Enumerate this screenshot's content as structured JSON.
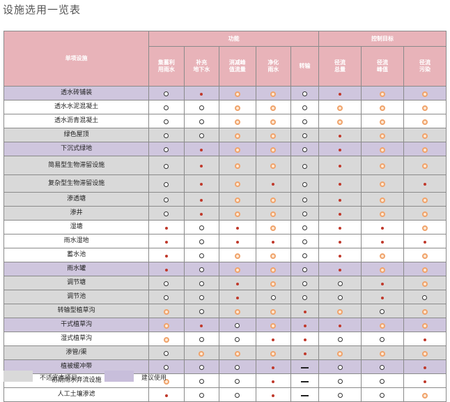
{
  "title": "设施选用一览表",
  "header": {
    "item_col": "单项设施",
    "groups": [
      "功能",
      "控制目标"
    ],
    "columns": [
      [
        "集蓄利",
        "用雨水"
      ],
      [
        "补充",
        "地下水"
      ],
      [
        "消减峰",
        "值流量"
      ],
      [
        "净化",
        "雨水"
      ],
      [
        "转输"
      ],
      [
        "径流",
        "总量"
      ],
      [
        "径流",
        "峰值"
      ],
      [
        "径流",
        "污染"
      ]
    ]
  },
  "legend_symbols": {
    "o": "empty circle",
    "dot": "small red dot",
    "r": "orange ring",
    "dash": "dash"
  },
  "rows": [
    {
      "name": "透水砖铺装",
      "bg": "purple",
      "cells": [
        "o",
        "dot",
        "r",
        "r",
        "o",
        "dot",
        "r",
        "r"
      ]
    },
    {
      "name": "透水水泥混凝土",
      "bg": "white",
      "cells": [
        "o",
        "o",
        "r",
        "r",
        "o",
        "r",
        "r",
        "r"
      ]
    },
    {
      "name": "透水沥青混凝土",
      "bg": "white",
      "cells": [
        "o",
        "o",
        "r",
        "r",
        "o",
        "r",
        "r",
        "r"
      ]
    },
    {
      "name": "绿色屋顶",
      "bg": "gray",
      "cells": [
        "o",
        "o",
        "r",
        "r",
        "o",
        "dot",
        "r",
        "r"
      ]
    },
    {
      "name": "下沉式绿地",
      "bg": "purple",
      "cells": [
        "o",
        "dot",
        "r",
        "r",
        "o",
        "dot",
        "r",
        "r"
      ]
    },
    {
      "name": "简易型生物滞留设施",
      "bg": "gray",
      "cells": [
        "o",
        "dot",
        "r",
        "r",
        "o",
        "dot",
        "r",
        "r"
      ]
    },
    {
      "name": "复杂型生物滞留设施",
      "bg": "gray",
      "cells": [
        "o",
        "dot",
        "r",
        "dot",
        "o",
        "dot",
        "r",
        "dot"
      ]
    },
    {
      "name": "渗透塘",
      "bg": "gray",
      "cells": [
        "o",
        "dot",
        "r",
        "r",
        "o",
        "dot",
        "r",
        "r"
      ]
    },
    {
      "name": "渗井",
      "bg": "gray",
      "cells": [
        "o",
        "dot",
        "r",
        "r",
        "o",
        "dot",
        "r",
        "r"
      ]
    },
    {
      "name": "湿塘",
      "bg": "white",
      "cells": [
        "dot",
        "o",
        "dot",
        "r",
        "o",
        "dot",
        "dot",
        "r"
      ]
    },
    {
      "name": "雨水湿地",
      "bg": "white",
      "cells": [
        "dot",
        "o",
        "dot",
        "dot",
        "o",
        "dot",
        "dot",
        "dot"
      ]
    },
    {
      "name": "蓄水池",
      "bg": "white",
      "cells": [
        "dot",
        "o",
        "r",
        "r",
        "o",
        "dot",
        "r",
        "r"
      ]
    },
    {
      "name": "雨水罐",
      "bg": "purple",
      "cells": [
        "dot",
        "o",
        "r",
        "r",
        "o",
        "dot",
        "r",
        "r"
      ]
    },
    {
      "name": "调节塘",
      "bg": "gray",
      "cells": [
        "o",
        "o",
        "dot",
        "r",
        "o",
        "o",
        "dot",
        "r"
      ]
    },
    {
      "name": "调节池",
      "bg": "gray",
      "cells": [
        "o",
        "o",
        "dot",
        "o",
        "o",
        "o",
        "dot",
        "o"
      ]
    },
    {
      "name": "转输型植草沟",
      "bg": "gray",
      "cells": [
        "r",
        "o",
        "r",
        "r",
        "dot",
        "r",
        "o",
        "r"
      ]
    },
    {
      "name": "干式植草沟",
      "bg": "purple",
      "cells": [
        "r",
        "dot",
        "o",
        "r",
        "dot",
        "dot",
        "r",
        "r"
      ]
    },
    {
      "name": "湿式植草沟",
      "bg": "white",
      "cells": [
        "r",
        "o",
        "o",
        "dot",
        "dot",
        "o",
        "o",
        "dot"
      ]
    },
    {
      "name": "渗管/渠",
      "bg": "gray",
      "cells": [
        "o",
        "r",
        "r",
        "r",
        "dot",
        "r",
        "r",
        "r"
      ]
    },
    {
      "name": "植被缓冲带",
      "bg": "purple",
      "cells": [
        "o",
        "o",
        "o",
        "dot",
        "dash",
        "o",
        "o",
        "dot"
      ]
    },
    {
      "name": "初期雨水弃流设施",
      "bg": "white",
      "cells": [
        "r",
        "o",
        "o",
        "dot",
        "dash",
        "o",
        "o",
        "dot"
      ]
    },
    {
      "name": "人工土壤渗滤",
      "bg": "white",
      "cells": [
        "dot",
        "o",
        "o",
        "dot",
        "dash",
        "o",
        "o",
        "r"
      ]
    }
  ],
  "legend": {
    "items": [
      {
        "label": "不适宜本项目",
        "color": "#d9d9d9"
      },
      {
        "label": "建议使用",
        "color": "#c8bedb"
      }
    ]
  }
}
